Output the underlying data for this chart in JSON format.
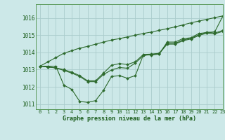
{
  "background_color": "#cce8e8",
  "grid_color": "#aacccc",
  "line_color": "#2d6a2d",
  "text_color": "#1a5c1a",
  "xlabel": "Graphe pression niveau de la mer (hPa)",
  "xlim": [
    -0.5,
    23
  ],
  "ylim": [
    1010.7,
    1016.8
  ],
  "yticks": [
    1011,
    1012,
    1013,
    1014,
    1015,
    1016
  ],
  "xticks": [
    0,
    1,
    2,
    3,
    4,
    5,
    6,
    7,
    8,
    9,
    10,
    11,
    12,
    13,
    14,
    15,
    16,
    17,
    18,
    19,
    20,
    21,
    22,
    23
  ],
  "lines": [
    [
      1013.2,
      1013.2,
      1013.2,
      1012.1,
      1011.85,
      1011.15,
      1011.1,
      1011.2,
      1011.8,
      1012.6,
      1012.65,
      1012.5,
      1012.65,
      1013.85,
      1013.85,
      1013.9,
      1014.6,
      1014.6,
      1014.8,
      1014.85,
      1015.1,
      1015.15,
      1015.2,
      1016.1
    ],
    [
      1013.2,
      1013.15,
      1013.1,
      1013.0,
      1012.85,
      1012.65,
      1012.35,
      1012.35,
      1012.8,
      1013.25,
      1013.35,
      1013.3,
      1013.45,
      1013.88,
      1013.9,
      1013.95,
      1014.52,
      1014.52,
      1014.72,
      1014.82,
      1015.02,
      1015.18,
      1015.12,
      1015.28
    ],
    [
      1013.2,
      1013.15,
      1013.1,
      1012.95,
      1012.8,
      1012.6,
      1012.3,
      1012.3,
      1012.72,
      1012.98,
      1013.12,
      1013.08,
      1013.38,
      1013.82,
      1013.88,
      1013.92,
      1014.48,
      1014.48,
      1014.68,
      1014.78,
      1014.98,
      1015.12,
      1015.08,
      1015.22
    ],
    [
      1013.2,
      1013.45,
      1013.7,
      1013.95,
      1014.1,
      1014.25,
      1014.35,
      1014.48,
      1014.6,
      1014.72,
      1014.8,
      1014.9,
      1015.0,
      1015.1,
      1015.18,
      1015.28,
      1015.38,
      1015.48,
      1015.6,
      1015.72,
      1015.82,
      1015.92,
      1016.02,
      1016.12
    ]
  ]
}
